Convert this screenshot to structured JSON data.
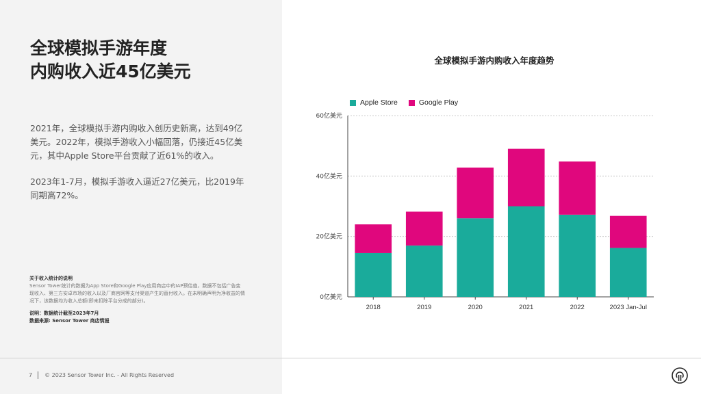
{
  "headline": {
    "line1": "全球模拟手游年度",
    "line2": "内购收入近45亿美元"
  },
  "body": {
    "para1": "2021年，全球模拟手游内购收入创历史新高，达到49亿美元。2022年，模拟手游收入小幅回落，仍接近45亿美元，其中Apple Store平台贡献了近61%的收入。",
    "para2": "2023年1-7月，模拟手游收入逼近27亿美元，比2019年同期高72%。"
  },
  "notes": {
    "heading": "关于收入统计的说明",
    "text": "Sensor Tower统计的数据为App Store和Google Play应用商店中的IAP预估值，数据不包括广告变现收入、第三方安卓市场的收入以及厂商官网等支付渠道产生的直付收入。在未明确声明为净收益的情况下，该数据均为收入总额(即未扣除平台分成的部分)。",
    "note_line": "说明：数据统计截至2023年7月",
    "source_line": "数据来源: Sensor Tower 商店情报"
  },
  "footer": {
    "page_number": "7",
    "copyright": "© 2023 Sensor Tower Inc. - All Rights Reserved"
  },
  "icons": {
    "logo": "sensor-tower-logo-icon"
  },
  "colors": {
    "apple": "#1aab9b",
    "google": "#e0077d"
  },
  "chart_data": {
    "type": "bar",
    "stacked": true,
    "title": "全球模拟手游内购收入年度趋势",
    "categories": [
      "2018",
      "2019",
      "2020",
      "2021",
      "2022",
      "2023 Jan-Jul"
    ],
    "series": [
      {
        "name": "Apple Store",
        "values": [
          14.5,
          17,
          26,
          30,
          27.2,
          16.2
        ]
      },
      {
        "name": "Google Play",
        "values": [
          9.5,
          11.2,
          16.8,
          19,
          17.6,
          10.6
        ]
      }
    ],
    "yticks": [
      "0亿美元",
      "20亿美元",
      "40亿美元",
      "60亿美元"
    ],
    "ylim": [
      0,
      60
    ],
    "grid": true,
    "legend_position": "top-left"
  }
}
